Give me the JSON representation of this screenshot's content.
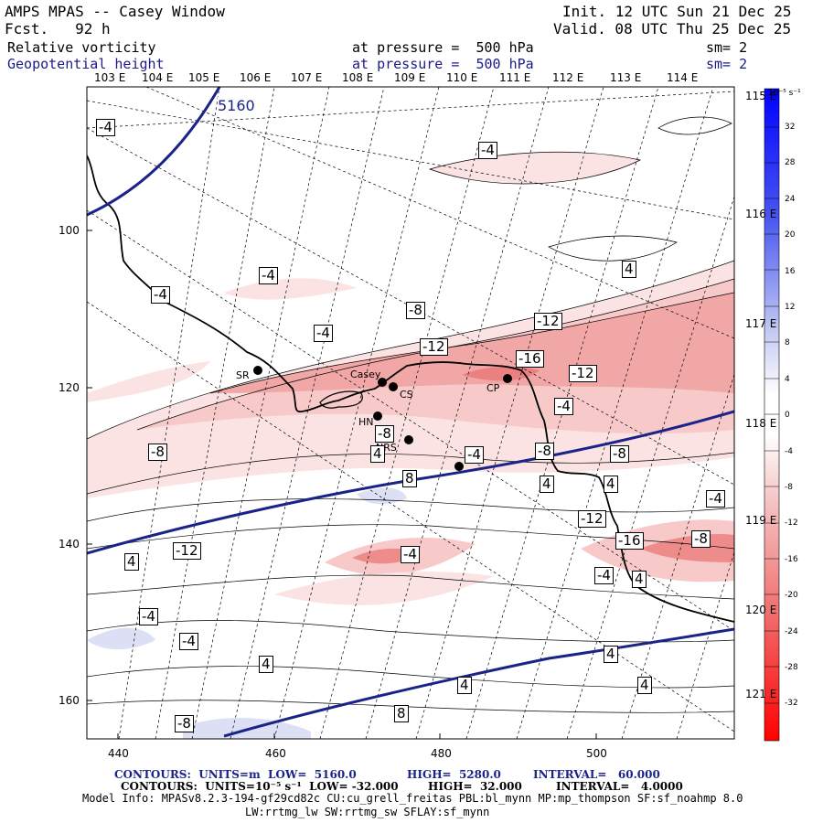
{
  "header": {
    "title": "AMPS MPAS -- Casey Window",
    "fcst": "Fcst.   92 h",
    "init": "Init. 12 UTC Sun 21 Dec 25",
    "valid": "Valid. 08 UTC Thu 25 Dec 25",
    "field1": "Relative vorticity",
    "field1_level": "at pressure =  500 hPa",
    "field1_sm": "sm= 2",
    "field2": "Geopotential height",
    "field2_level": "at pressure =  500 hPa",
    "field2_sm": "sm= 2"
  },
  "top_longitudes": [
    "103 E",
    "104 E",
    "105 E",
    "106 E",
    "107 E",
    "108 E",
    "109 E",
    "110 E",
    "111 E",
    "112 E",
    "113 E",
    "114 E"
  ],
  "right_longitudes": [
    "115 E",
    "116 E",
    "117 E",
    "118 E",
    "119 E",
    "120 E",
    "121 E"
  ],
  "y_ticks": [
    "100",
    "120",
    "140",
    "160"
  ],
  "x_ticks": [
    "440",
    "460",
    "480",
    "500"
  ],
  "stations": [
    "SR",
    "Casey",
    "CS",
    "CP",
    "HN",
    "NRS"
  ],
  "height_labels": [
    "5160"
  ],
  "vorticity_labels": [
    "-4",
    "-4",
    "-4",
    "-4",
    "4",
    "-4",
    "-8",
    "-12",
    "-12",
    "-16",
    "-12",
    "-4",
    "-8",
    "-8",
    "-4",
    "-8",
    "8",
    "4",
    "4",
    "-4",
    "-8",
    "-12",
    "-16",
    "-8",
    "-4",
    "4",
    "4",
    "-12",
    "-4",
    "-4",
    "-4",
    "4",
    "4",
    "4",
    "4",
    "8",
    "-8",
    "4",
    "-8"
  ],
  "colorbar": {
    "unit": "10⁻⁵ s⁻¹",
    "labels": [
      "32",
      "28",
      "24",
      "20",
      "16",
      "12",
      "8",
      "4",
      "0",
      "-4",
      "-8",
      "-12",
      "-16",
      "-20",
      "-24",
      "-28",
      "-32"
    ],
    "colors": {
      "positive_strong": "#0000ff",
      "positive_weak": "#dde0f5",
      "negative_weak": "#fbe2e2",
      "negative_strong": "#ff0000"
    }
  },
  "footer": {
    "line1_a": "CONTOURS:  UNITS=m  LOW=  5160.0",
    "line1_b": "HIGH=  5280.0",
    "line1_c": "INTERVAL=   60.000",
    "line2_a": "CONTOURS:  UNITS=10⁻⁵ s⁻¹  LOW= -32.000",
    "line2_b": "HIGH=  32.000",
    "line2_c": "INTERVAL=   4.0000",
    "line3": "Model Info: MPASv8.2.3-194-gf29cd82c CU:cu_grell_freitas PBL:bl_mynn MP:mp_thompson SF:sf_noahmp 8.0",
    "line4": "LW:rrtmg_lw SW:rrtmg_sw SFLAY:sf_mynn"
  }
}
